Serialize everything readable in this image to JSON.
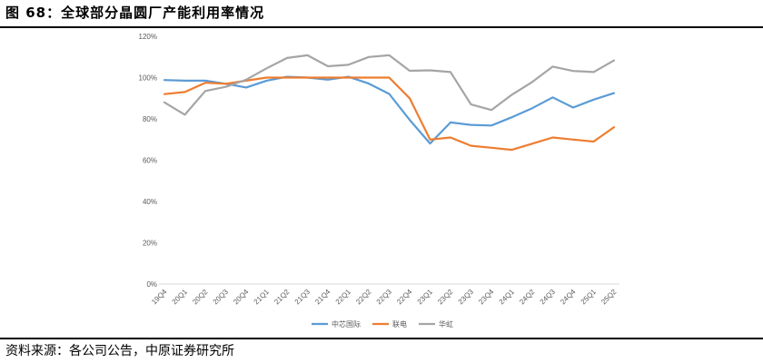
{
  "figure": {
    "title": "图 68：全球部分晶圆厂产能利用率情况",
    "source": "资料来源：各公司公告，中原证券研究所"
  },
  "chart_data": {
    "type": "line",
    "title": "",
    "xlabel": "",
    "ylabel": "",
    "ylim": [
      0,
      120
    ],
    "yticks": [
      0,
      20,
      40,
      60,
      80,
      100,
      120
    ],
    "ytick_labels": [
      "0%",
      "20%",
      "40%",
      "60%",
      "80%",
      "100%",
      "120%"
    ],
    "grid": false,
    "legend_position": "bottom",
    "categories": [
      "19Q4",
      "20Q1",
      "20Q2",
      "20Q3",
      "20Q4",
      "21Q1",
      "21Q2",
      "21Q3",
      "21Q4",
      "22Q1",
      "22Q2",
      "22Q3",
      "22Q4",
      "23Q1",
      "23Q2",
      "23Q3",
      "23Q4",
      "24Q1",
      "24Q2",
      "24Q3",
      "24Q4",
      "25Q1",
      "25Q2"
    ],
    "series": [
      {
        "name": "中芯国际",
        "color": "#5B9BD5",
        "values": [
          98.8,
          98.5,
          98.5,
          97.0,
          95.2,
          98.5,
          100.4,
          100.0,
          99.0,
          100.4,
          97.1,
          92.1,
          79.5,
          68.1,
          78.3,
          77.1,
          76.8,
          80.8,
          85.2,
          90.4,
          85.5,
          89.3,
          92.5
        ]
      },
      {
        "name": "联电",
        "color": "#ED7D31",
        "values": [
          92.0,
          93.0,
          97.5,
          97.0,
          98.5,
          100.0,
          100.0,
          100.0,
          100.0,
          100.0,
          100.0,
          100.0,
          90.0,
          70.0,
          71.0,
          67.0,
          66.0,
          65.0,
          68.0,
          71.0,
          70.0,
          69.0,
          76.0
        ]
      },
      {
        "name": "华虹",
        "color": "#A5A5A5",
        "values": [
          88.0,
          82.0,
          93.5,
          95.5,
          99.0,
          104.5,
          109.5,
          110.8,
          105.5,
          106.2,
          110.0,
          110.8,
          103.3,
          103.5,
          102.7,
          87.0,
          84.3,
          91.7,
          97.9,
          105.3,
          103.2,
          102.7,
          108.3
        ]
      }
    ]
  }
}
